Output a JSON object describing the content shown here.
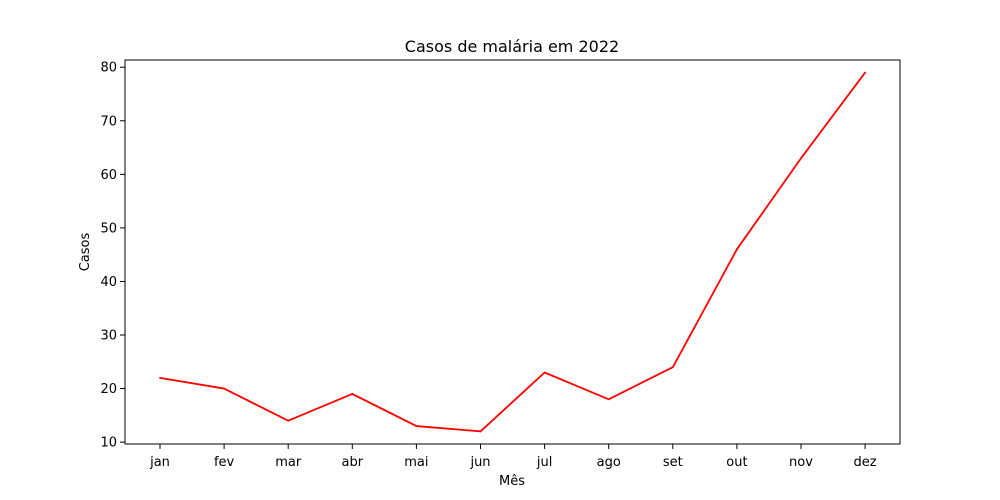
{
  "chart_data": {
    "type": "line",
    "title": "Casos de malária em 2022",
    "xlabel": "Mês",
    "ylabel": "Casos",
    "categories": [
      "jan",
      "fev",
      "mar",
      "abr",
      "mai",
      "jun",
      "jul",
      "ago",
      "set",
      "out",
      "nov",
      "dez"
    ],
    "series": [
      {
        "values": [
          22,
          20,
          14,
          19,
          13,
          12,
          23,
          18,
          24,
          46,
          63,
          79
        ],
        "color": "#ff0000"
      }
    ],
    "ylim": [
      9.65,
      81.35
    ],
    "yticks": [
      "10",
      "20",
      "30",
      "40",
      "50",
      "60",
      "70",
      "80"
    ],
    "grid": false
  }
}
